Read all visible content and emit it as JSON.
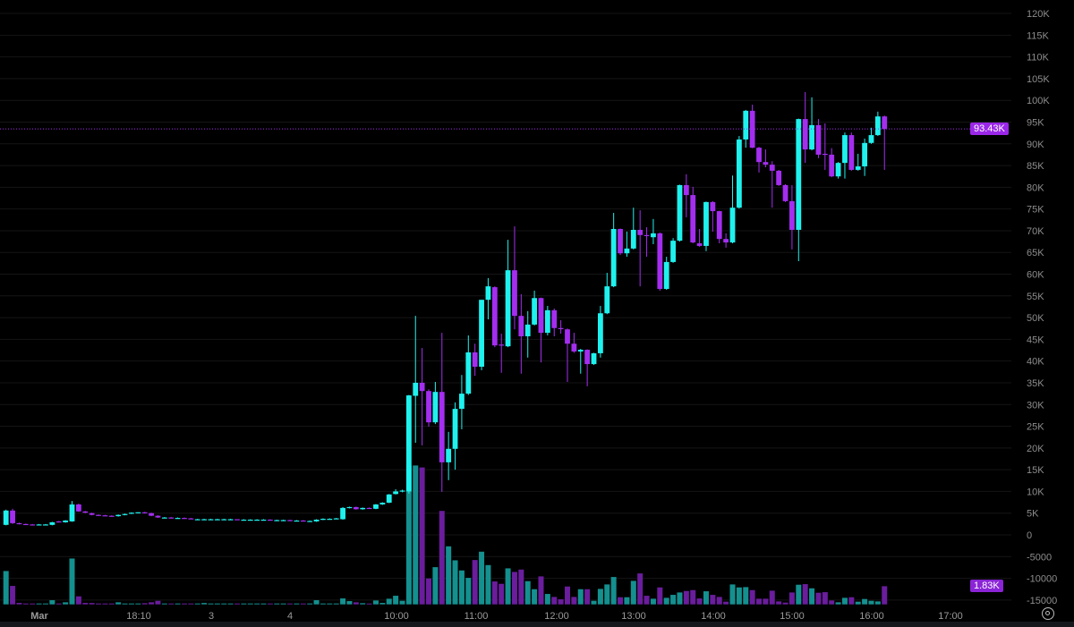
{
  "chart_data": {
    "type": "candlestick",
    "title": "",
    "colors": {
      "up": "#1ff2ee",
      "down": "#a42ef0",
      "volume_up": "#14908f",
      "volume_down": "#6a1d9c",
      "last_price_line": "#a42ef0",
      "grid": "#151515"
    },
    "y_axis": {
      "range": [
        -15000,
        120000
      ],
      "ticks": [
        {
          "value": 120000,
          "label": "120K"
        },
        {
          "value": 115000,
          "label": "115K"
        },
        {
          "value": 110000,
          "label": "110K"
        },
        {
          "value": 105000,
          "label": "105K"
        },
        {
          "value": 100000,
          "label": "100K"
        },
        {
          "value": 95000,
          "label": "95K"
        },
        {
          "value": 90000,
          "label": "90K"
        },
        {
          "value": 85000,
          "label": "85K"
        },
        {
          "value": 80000,
          "label": "80K"
        },
        {
          "value": 75000,
          "label": "75K"
        },
        {
          "value": 70000,
          "label": "70K"
        },
        {
          "value": 65000,
          "label": "65K"
        },
        {
          "value": 60000,
          "label": "60K"
        },
        {
          "value": 55000,
          "label": "55K"
        },
        {
          "value": 50000,
          "label": "50K"
        },
        {
          "value": 45000,
          "label": "45K"
        },
        {
          "value": 40000,
          "label": "40K"
        },
        {
          "value": 35000,
          "label": "35K"
        },
        {
          "value": 30000,
          "label": "30K"
        },
        {
          "value": 25000,
          "label": "25K"
        },
        {
          "value": 20000,
          "label": "20K"
        },
        {
          "value": 15000,
          "label": "15K"
        },
        {
          "value": 10000,
          "label": "10K"
        },
        {
          "value": 5000,
          "label": "5K"
        },
        {
          "value": 0,
          "label": "0"
        },
        {
          "value": -5000,
          "label": "-5000"
        },
        {
          "value": -10000,
          "label": "-10000"
        },
        {
          "value": -15000,
          "label": "-15000"
        }
      ]
    },
    "x_axis": {
      "tick_labels": [
        "Mar",
        "18:10",
        "3",
        "4",
        "10:00",
        "11:00",
        "12:00",
        "13:00",
        "14:00",
        "15:00",
        "16:00",
        "17:00"
      ]
    },
    "last_price": {
      "value": 93430,
      "label": "93.43K"
    },
    "last_volume": {
      "value": 1830,
      "label": "1.83K"
    },
    "ohlc_columns": [
      "open",
      "high",
      "low",
      "close"
    ],
    "ohlc_unit": "thousands",
    "ohlc": [
      [
        2.3,
        5.8,
        2.2,
        5.6
      ],
      [
        5.6,
        6.0,
        2.5,
        2.7
      ],
      [
        2.7,
        2.8,
        2.4,
        2.5
      ],
      [
        2.5,
        2.6,
        2.3,
        2.4
      ],
      [
        2.4,
        2.5,
        2.2,
        2.3
      ],
      [
        2.3,
        2.5,
        2.2,
        2.4
      ],
      [
        2.4,
        2.5,
        2.3,
        2.4
      ],
      [
        2.3,
        3.0,
        2.2,
        2.9
      ],
      [
        3.1,
        3.2,
        2.9,
        3.0
      ],
      [
        2.9,
        3.4,
        2.8,
        3.3
      ],
      [
        3.1,
        7.8,
        3.0,
        7.0
      ],
      [
        7.0,
        7.2,
        5.3,
        5.4
      ],
      [
        5.4,
        5.5,
        5.0,
        5.1
      ],
      [
        5.0,
        5.1,
        4.5,
        4.6
      ],
      [
        4.6,
        4.7,
        4.4,
        4.5
      ],
      [
        4.5,
        4.6,
        4.3,
        4.4
      ],
      [
        4.4,
        4.5,
        4.2,
        4.3
      ],
      [
        4.3,
        4.7,
        4.2,
        4.6
      ],
      [
        4.6,
        4.9,
        4.5,
        4.8
      ],
      [
        4.9,
        5.2,
        4.8,
        5.1
      ],
      [
        5.1,
        5.2,
        5.0,
        5.2
      ],
      [
        5.2,
        5.3,
        4.9,
        5.0
      ],
      [
        5.0,
        5.1,
        4.3,
        4.4
      ],
      [
        4.4,
        4.5,
        3.9,
        4.0
      ],
      [
        4.0,
        4.1,
        3.9,
        4.0
      ],
      [
        4.0,
        4.1,
        3.9,
        3.9
      ],
      [
        3.9,
        4.0,
        3.8,
        3.9
      ],
      [
        3.9,
        4.0,
        3.8,
        3.8
      ],
      [
        3.8,
        3.9,
        3.6,
        3.6
      ],
      [
        3.6,
        3.7,
        3.5,
        3.6
      ],
      [
        3.6,
        3.7,
        3.5,
        3.6
      ],
      [
        3.6,
        3.7,
        3.5,
        3.6
      ],
      [
        3.6,
        3.7,
        3.5,
        3.6
      ],
      [
        3.6,
        3.7,
        3.5,
        3.6
      ],
      [
        3.6,
        3.7,
        3.5,
        3.6
      ],
      [
        3.6,
        3.6,
        3.4,
        3.5
      ],
      [
        3.5,
        3.6,
        3.4,
        3.5
      ],
      [
        3.5,
        3.6,
        3.4,
        3.5
      ],
      [
        3.5,
        3.6,
        3.4,
        3.5
      ],
      [
        3.5,
        3.6,
        3.4,
        3.5
      ],
      [
        3.5,
        3.6,
        3.4,
        3.4
      ],
      [
        3.4,
        3.5,
        3.3,
        3.4
      ],
      [
        3.4,
        3.5,
        3.3,
        3.4
      ],
      [
        3.4,
        3.5,
        3.3,
        3.3
      ],
      [
        3.3,
        3.4,
        3.2,
        3.3
      ],
      [
        3.3,
        3.4,
        3.2,
        3.2
      ],
      [
        3.2,
        3.3,
        3.1,
        3.2
      ],
      [
        3.1,
        3.6,
        3.0,
        3.5
      ],
      [
        3.5,
        3.8,
        3.4,
        3.7
      ],
      [
        3.7,
        3.8,
        3.6,
        3.7
      ],
      [
        3.7,
        3.9,
        3.6,
        3.8
      ],
      [
        3.6,
        6.4,
        3.5,
        6.2
      ],
      [
        6.2,
        6.5,
        6.1,
        6.4
      ],
      [
        6.4,
        6.5,
        5.8,
        5.9
      ],
      [
        5.9,
        6.3,
        5.8,
        6.2
      ],
      [
        6.2,
        6.3,
        6.0,
        6.1
      ],
      [
        6.0,
        7.1,
        5.9,
        7.0
      ],
      [
        7.0,
        7.5,
        6.9,
        7.4
      ],
      [
        7.4,
        9.4,
        7.3,
        9.3
      ],
      [
        9.4,
        10.5,
        9.3,
        10.0
      ],
      [
        10.0,
        10.4,
        9.8,
        10.2
      ],
      [
        10.0,
        32.2,
        9.5,
        32.1
      ],
      [
        32.0,
        50.4,
        21.2,
        35.0
      ],
      [
        35.0,
        43.0,
        20.6,
        33.1
      ],
      [
        33.1,
        33.5,
        24.9,
        25.9
      ],
      [
        25.9,
        35.2,
        25.5,
        32.9
      ],
      [
        32.9,
        46.5,
        9.9,
        16.7
      ],
      [
        16.7,
        23.7,
        12.6,
        19.8
      ],
      [
        19.8,
        30.5,
        15.0,
        29.0
      ],
      [
        29.0,
        36.8,
        24.3,
        32.5
      ],
      [
        32.5,
        45.9,
        32.2,
        42.0
      ],
      [
        42.0,
        44.0,
        36.6,
        38.7
      ],
      [
        38.7,
        54.1,
        37.9,
        54.1
      ],
      [
        54.1,
        59.1,
        49.6,
        57.2
      ],
      [
        57.0,
        57.2,
        43.2,
        43.6
      ],
      [
        43.8,
        46.3,
        37.3,
        43.6
      ],
      [
        43.4,
        67.9,
        43.2,
        60.9
      ],
      [
        60.9,
        71.0,
        47.3,
        50.4
      ],
      [
        50.4,
        55.4,
        37.1,
        45.7
      ],
      [
        45.7,
        51.5,
        40.8,
        48.4
      ],
      [
        48.4,
        56.2,
        48.2,
        54.5
      ],
      [
        54.5,
        54.6,
        39.7,
        46.5
      ],
      [
        46.5,
        52.7,
        45.9,
        51.7
      ],
      [
        51.7,
        52.1,
        45.7,
        47.6
      ],
      [
        47.6,
        49.4,
        46.3,
        47.4
      ],
      [
        47.3,
        47.5,
        35.2,
        44.0
      ],
      [
        44.0,
        46.5,
        41.9,
        42.2
      ],
      [
        42.2,
        42.8,
        37.1,
        42.6
      ],
      [
        42.6,
        42.7,
        34.2,
        39.3
      ],
      [
        39.3,
        41.9,
        39.1,
        41.8
      ],
      [
        41.8,
        52.7,
        40.8,
        51.0
      ],
      [
        51.0,
        60.3,
        50.8,
        57.2
      ],
      [
        57.2,
        74.1,
        57.0,
        70.4
      ],
      [
        70.4,
        70.5,
        64.4,
        64.8
      ],
      [
        64.8,
        69.8,
        64.0,
        65.9
      ],
      [
        65.9,
        75.3,
        65.7,
        70.2
      ],
      [
        70.2,
        74.7,
        57.2,
        69.0
      ],
      [
        69.0,
        70.8,
        64.0,
        68.8
      ],
      [
        68.5,
        72.7,
        66.9,
        69.4
      ],
      [
        69.4,
        69.6,
        56.2,
        56.6
      ],
      [
        56.6,
        64.0,
        56.4,
        62.8
      ],
      [
        62.8,
        68.3,
        62.6,
        67.7
      ],
      [
        67.7,
        80.6,
        67.5,
        80.5
      ],
      [
        80.5,
        83.0,
        73.1,
        78.2
      ],
      [
        78.2,
        80.1,
        67.1,
        67.3
      ],
      [
        67.1,
        70.4,
        66.3,
        66.5
      ],
      [
        66.5,
        76.7,
        65.3,
        76.6
      ],
      [
        76.6,
        76.8,
        69.8,
        74.5
      ],
      [
        74.5,
        74.6,
        67.1,
        68.1
      ],
      [
        68.1,
        69.4,
        66.1,
        67.3
      ],
      [
        67.3,
        82.7,
        67.1,
        75.3
      ],
      [
        75.3,
        91.8,
        75.1,
        91.0
      ],
      [
        91.0,
        97.8,
        89.1,
        97.6
      ],
      [
        97.6,
        99.0,
        89.0,
        89.1
      ],
      [
        89.1,
        89.3,
        83.4,
        85.8
      ],
      [
        85.8,
        88.7,
        84.6,
        85.2
      ],
      [
        85.2,
        86.0,
        75.3,
        83.8
      ],
      [
        83.8,
        84.0,
        80.3,
        80.5
      ],
      [
        80.5,
        80.7,
        76.6,
        76.8
      ],
      [
        76.8,
        80.5,
        65.7,
        70.2
      ],
      [
        70.2,
        95.8,
        63.0,
        95.7
      ],
      [
        95.7,
        101.9,
        85.6,
        88.7
      ],
      [
        88.7,
        100.7,
        88.5,
        94.3
      ],
      [
        94.3,
        95.7,
        86.7,
        87.5
      ],
      [
        87.7,
        94.7,
        84.0,
        87.5
      ],
      [
        87.5,
        89.0,
        82.3,
        82.5
      ],
      [
        82.5,
        85.8,
        82.0,
        85.6
      ],
      [
        85.6,
        92.6,
        82.0,
        92.0
      ],
      [
        92.0,
        92.6,
        83.8,
        84.0
      ],
      [
        84.0,
        87.7,
        83.8,
        84.8
      ],
      [
        84.8,
        91.2,
        82.6,
        90.2
      ],
      [
        90.2,
        93.7,
        90.0,
        92.0
      ],
      [
        92.0,
        97.4,
        91.8,
        96.3
      ],
      [
        96.3,
        96.5,
        84.0,
        93.4
      ]
    ],
    "volume_unit": "thousands",
    "volume": [
      3.36,
      1.86,
      0.15,
      0.09,
      0.09,
      0.09,
      0.09,
      0.42,
      0.09,
      0.21,
      4.62,
      0.81,
      0.15,
      0.14,
      0.05,
      0.05,
      0.05,
      0.21,
      0.09,
      0.09,
      0.09,
      0.12,
      0.21,
      0.36,
      0.05,
      0.05,
      0.05,
      0.05,
      0.05,
      0.05,
      0.14,
      0.05,
      0.05,
      0.05,
      0.05,
      0.05,
      0.05,
      0.05,
      0.05,
      0.05,
      0.05,
      0.05,
      0.05,
      0.05,
      0.05,
      0.05,
      0.05,
      0.42,
      0.09,
      0.09,
      0.09,
      0.6,
      0.33,
      0.21,
      0.12,
      0.09,
      0.39,
      0.15,
      0.57,
      0.87,
      0.36,
      14.0,
      14.0,
      13.8,
      2.61,
      3.75,
      9.42,
      5.85,
      4.44,
      3.42,
      2.67,
      4.47,
      5.31,
      3.96,
      2.31,
      2.07,
      3.63,
      3.27,
      3.51,
      2.34,
      1.53,
      2.82,
      1.05,
      0.75,
      0.51,
      1.8,
      0.75,
      1.53,
      1.53,
      0.36,
      1.56,
      2.01,
      2.76,
      0.72,
      0.72,
      2.37,
      3.12,
      0.87,
      0.57,
      1.71,
      0.66,
      0.96,
      1.2,
      1.35,
      1.44,
      0.6,
      1.32,
      0.96,
      0.75,
      0.27,
      2.01,
      1.71,
      1.74,
      1.44,
      0.57,
      0.57,
      1.38,
      0.3,
      0.18,
      1.2,
      1.98,
      2.04,
      1.62,
      1.17,
      1.23,
      0.39,
      0.21,
      0.66,
      0.72,
      0.27,
      0.54,
      0.36,
      0.3,
      1.83
    ],
    "grid": true,
    "legend": "none"
  },
  "controls": {
    "settings_icon": "settings-icon"
  }
}
